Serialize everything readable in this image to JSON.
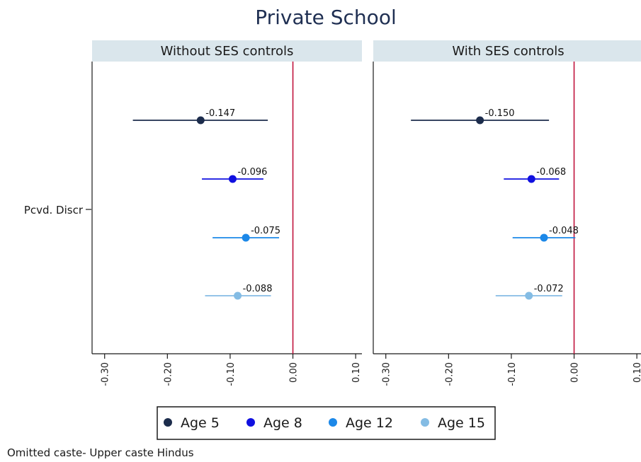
{
  "chart_data": {
    "type": "scatter",
    "subtype": "coefficient-plot-with-confidence-intervals",
    "title": "Private School",
    "note": "Omitted caste- Upper caste Hindus",
    "y_category": "Pcvd. Discr",
    "xlim": [
      -0.32,
      0.11
    ],
    "xticks": [
      -0.3,
      -0.2,
      -0.1,
      0.0,
      0.1
    ],
    "xtick_labels": [
      "-0.30",
      "-0.20",
      "-0.10",
      "0.00",
      "0.10"
    ],
    "reference_line": {
      "x": 0.0,
      "color": "#c0143c"
    },
    "legend": {
      "placement": "bottom",
      "entries": [
        {
          "label": "Age 5",
          "color": "#1c2c4c"
        },
        {
          "label": "Age 8",
          "color": "#1010e0"
        },
        {
          "label": "Age 12",
          "color": "#1c88e8"
        },
        {
          "label": "Age 15",
          "color": "#84bce4"
        }
      ]
    },
    "panels": [
      {
        "title": "Without SES controls",
        "series": [
          {
            "name": "Age 5",
            "estimate": -0.147,
            "ci": [
              -0.255,
              -0.04
            ],
            "label": "-0.147"
          },
          {
            "name": "Age 8",
            "estimate": -0.096,
            "ci": [
              -0.145,
              -0.047
            ],
            "label": "-0.096"
          },
          {
            "name": "Age 12",
            "estimate": -0.075,
            "ci": [
              -0.128,
              -0.022
            ],
            "label": "-0.075"
          },
          {
            "name": "Age 15",
            "estimate": -0.088,
            "ci": [
              -0.14,
              -0.035
            ],
            "label": "-0.088"
          }
        ]
      },
      {
        "title": "With SES controls",
        "series": [
          {
            "name": "Age 5",
            "estimate": -0.15,
            "ci": [
              -0.26,
              -0.04
            ],
            "label": "-0.150"
          },
          {
            "name": "Age 8",
            "estimate": -0.068,
            "ci": [
              -0.112,
              -0.024
            ],
            "label": "-0.068"
          },
          {
            "name": "Age 12",
            "estimate": -0.048,
            "ci": [
              -0.098,
              0.002
            ],
            "label": "-0.048"
          },
          {
            "name": "Age 15",
            "estimate": -0.072,
            "ci": [
              -0.125,
              -0.019
            ],
            "label": "-0.072"
          }
        ]
      }
    ]
  }
}
